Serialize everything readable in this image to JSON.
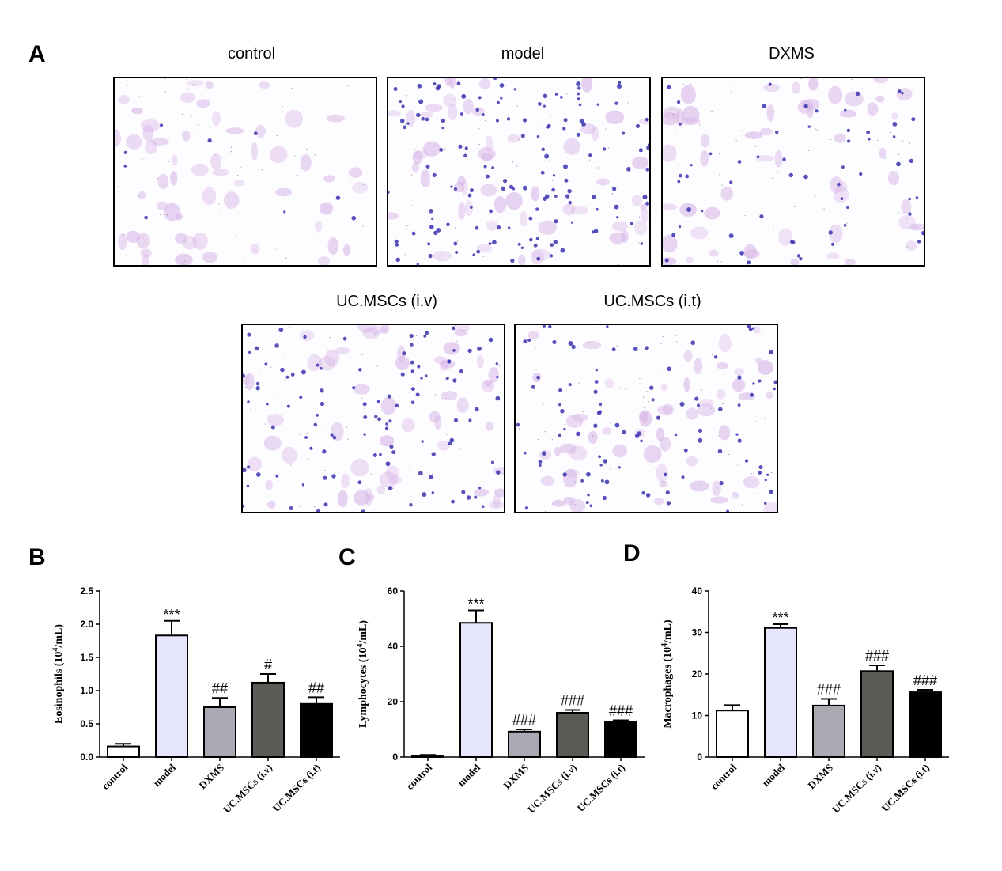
{
  "panels": {
    "a": "A",
    "b": "B",
    "c": "C",
    "d": "D"
  },
  "micrographs": [
    {
      "label": "control",
      "density": 0.25,
      "dark_ratio": 0.05
    },
    {
      "label": "model",
      "density": 1.0,
      "dark_ratio": 0.85
    },
    {
      "label": "DXMS",
      "density": 0.45,
      "dark_ratio": 0.35
    },
    {
      "label": "UC.MSCs (i.v)",
      "density": 0.7,
      "dark_ratio": 0.65
    },
    {
      "label": "UC.MSCs (i.t)",
      "density": 0.55,
      "dark_ratio": 0.55
    }
  ],
  "colors": {
    "control": "#ffffff",
    "model": "#e6e6fa",
    "DXMS": "#a9a9b2",
    "UC.MSCs (i.v)": "#595b55",
    "UC.MSCs (i.t)": "#000000",
    "stain_light": "#d9b8e8",
    "stain_dark": "#3a33b0"
  },
  "chart_data": [
    {
      "type": "bar",
      "panel": "B",
      "categories": [
        "control",
        "model",
        "DXMS",
        "UC.MSCs (i.v)",
        "UC.MSCs (i.t)"
      ],
      "values": [
        0.16,
        1.83,
        0.75,
        1.12,
        0.8
      ],
      "errors": [
        0.04,
        0.22,
        0.14,
        0.13,
        0.1
      ],
      "annotations": [
        "",
        "***",
        "##",
        "#",
        "##"
      ],
      "ylabel_main": "Eosinophils (10",
      "ylabel_sup": "4",
      "ylabel_tail": "/mL)",
      "ylim": [
        0,
        2.5
      ],
      "yticks": [
        "0.0",
        "0.5",
        "1.0",
        "1.5",
        "2.0",
        "2.5"
      ],
      "ytick_values": [
        0,
        0.5,
        1.0,
        1.5,
        2.0,
        2.5
      ]
    },
    {
      "type": "bar",
      "panel": "C",
      "categories": [
        "control",
        "model",
        "DXMS",
        "UC.MSCs (i.v)",
        "UC.MSCs (i.t)"
      ],
      "values": [
        0.5,
        48.5,
        9.2,
        16.0,
        12.7
      ],
      "errors": [
        0.3,
        4.5,
        0.8,
        1.0,
        0.6
      ],
      "annotations": [
        "",
        "***",
        "###",
        "###",
        "###"
      ],
      "ylabel_main": "Lymphocytes (10",
      "ylabel_sup": "4",
      "ylabel_tail": "/mL)",
      "ylim": [
        0,
        60
      ],
      "yticks": [
        "0",
        "20",
        "40",
        "60"
      ],
      "ytick_values": [
        0,
        20,
        40,
        60
      ]
    },
    {
      "type": "bar",
      "panel": "D",
      "categories": [
        "control",
        "model",
        "DXMS",
        "UC.MSCs (i.v)",
        "UC.MSCs (i.t)"
      ],
      "values": [
        11.2,
        31.1,
        12.4,
        20.7,
        15.6
      ],
      "errors": [
        1.3,
        0.9,
        1.6,
        1.4,
        0.6
      ],
      "annotations": [
        "",
        "***",
        "###",
        "###",
        "###"
      ],
      "ylabel_main": "Macrophages (10",
      "ylabel_sup": "4",
      "ylabel_tail": "/mL)",
      "ylim": [
        0,
        40
      ],
      "yticks": [
        "0",
        "10",
        "20",
        "30",
        "40"
      ],
      "ytick_values": [
        0,
        10,
        20,
        30,
        40
      ]
    }
  ]
}
